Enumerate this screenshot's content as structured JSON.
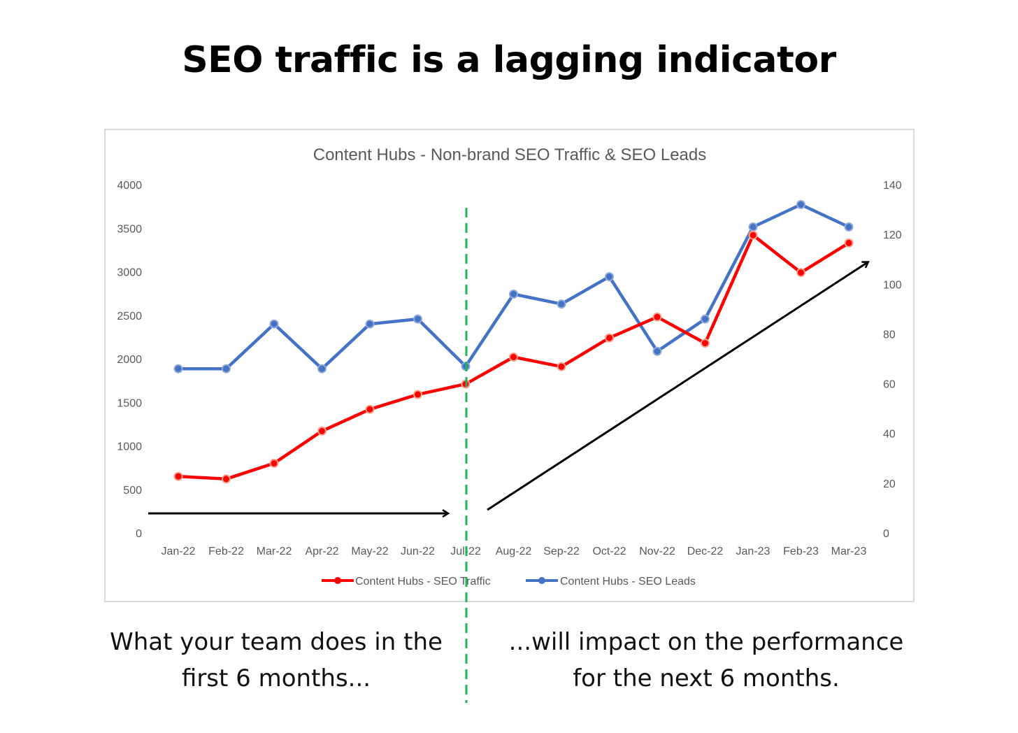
{
  "headline": "SEO traffic is a lagging indicator",
  "captions": {
    "left": [
      "What your team does in the",
      "first 6 months..."
    ],
    "right": [
      "...will impact on the performance",
      "for the next 6 months."
    ]
  },
  "colors": {
    "traffic": "#ff0000",
    "leads": "#4472c4",
    "divider": "#1fb35a",
    "arrow": "#000000",
    "frame": "#d9d9d9",
    "text": "#595959"
  },
  "chart_data": {
    "type": "line",
    "title": "Content Hubs - Non-brand SEO Traffic & SEO Leads",
    "categories": [
      "Jan-22",
      "Feb-22",
      "Mar-22",
      "Apr-22",
      "May-22",
      "Jun-22",
      "Jul-22",
      "Aug-22",
      "Sep-22",
      "Oct-22",
      "Nov-22",
      "Dec-22",
      "Jan-23",
      "Feb-23",
      "Mar-23"
    ],
    "series": [
      {
        "name": "Content Hubs - SEO Traffic",
        "axis": "left",
        "values": [
          650,
          620,
          800,
          1170,
          1420,
          1590,
          1710,
          2020,
          1910,
          2240,
          2480,
          2180,
          3420,
          2990,
          3330
        ]
      },
      {
        "name": "Content Hubs - SEO Leads",
        "axis": "right",
        "values": [
          66,
          66,
          84,
          66,
          84,
          86,
          67,
          96,
          92,
          103,
          73,
          86,
          123,
          132,
          123
        ]
      }
    ],
    "left_axis": {
      "ylim": [
        0,
        4000
      ],
      "ticks": [
        0,
        500,
        1000,
        1500,
        2000,
        2500,
        3000,
        3500,
        4000
      ]
    },
    "right_axis": {
      "ylim": [
        0,
        140
      ],
      "ticks": [
        0,
        20,
        40,
        60,
        80,
        100,
        120,
        140
      ]
    },
    "legend": "bottom",
    "grid": false,
    "annotations": {
      "divider_at": "Jul-22",
      "arrows": [
        "flat arrow before Jul-22",
        "rising arrow after Jul-22"
      ]
    }
  }
}
